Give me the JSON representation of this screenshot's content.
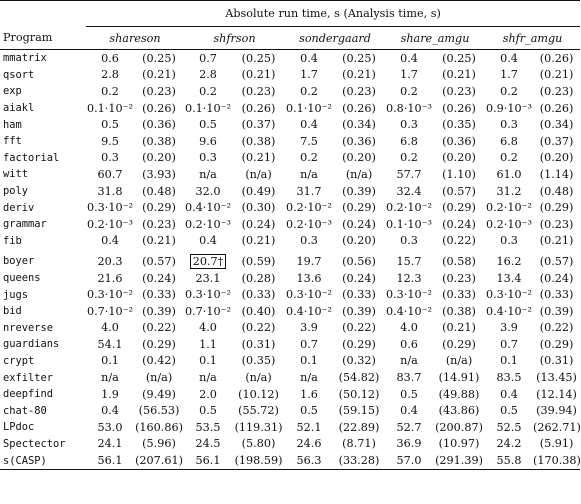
{
  "table": {
    "group_header": "Absolute run time, s (Analysis time, s)",
    "program_header": "Program",
    "tools": [
      "shareson",
      "shfrson",
      "sondergaard",
      "share_amgu",
      "shfr_amgu"
    ],
    "rows": [
      {
        "program": "mmatrix",
        "cells": [
          [
            "0.6",
            "(0.25)"
          ],
          [
            "0.7",
            "(0.25)"
          ],
          [
            "0.4",
            "(0.25)"
          ],
          [
            "0.4",
            "(0.25)"
          ],
          [
            "0.4",
            "(0.26)"
          ]
        ]
      },
      {
        "program": "qsort",
        "cells": [
          [
            "2.8",
            "(0.21)"
          ],
          [
            "2.8",
            "(0.21)"
          ],
          [
            "1.7",
            "(0.21)"
          ],
          [
            "1.7",
            "(0.21)"
          ],
          [
            "1.7",
            "(0.21)"
          ]
        ]
      },
      {
        "program": "exp",
        "cells": [
          [
            "0.2",
            "(0.23)"
          ],
          [
            "0.2",
            "(0.23)"
          ],
          [
            "0.2",
            "(0.23)"
          ],
          [
            "0.2",
            "(0.23)"
          ],
          [
            "0.2",
            "(0.23)"
          ]
        ]
      },
      {
        "program": "aiakl",
        "cells": [
          [
            "0.1·10⁻²",
            "(0.26)"
          ],
          [
            "0.1·10⁻²",
            "(0.26)"
          ],
          [
            "0.1·10⁻²",
            "(0.26)"
          ],
          [
            "0.8·10⁻³",
            "(0.26)"
          ],
          [
            "0.9·10⁻³",
            "(0.26)"
          ]
        ]
      },
      {
        "program": "ham",
        "cells": [
          [
            "0.5",
            "(0.36)"
          ],
          [
            "0.5",
            "(0.37)"
          ],
          [
            "0.4",
            "(0.34)"
          ],
          [
            "0.3",
            "(0.35)"
          ],
          [
            "0.3",
            "(0.34)"
          ]
        ]
      },
      {
        "program": "fft",
        "cells": [
          [
            "9.5",
            "(0.38)"
          ],
          [
            "9.6",
            "(0.38)"
          ],
          [
            "7.5",
            "(0.36)"
          ],
          [
            "6.8",
            "(0.36)"
          ],
          [
            "6.8",
            "(0.37)"
          ]
        ]
      },
      {
        "program": "factorial",
        "cells": [
          [
            "0.3",
            "(0.20)"
          ],
          [
            "0.3",
            "(0.21)"
          ],
          [
            "0.2",
            "(0.20)"
          ],
          [
            "0.2",
            "(0.20)"
          ],
          [
            "0.2",
            "(0.20)"
          ]
        ]
      },
      {
        "program": "witt",
        "cells": [
          [
            "60.7",
            "(3.93)"
          ],
          [
            "n/a",
            "(n/a)"
          ],
          [
            "n/a",
            "(n/a)"
          ],
          [
            "57.7",
            "(1.10)"
          ],
          [
            "61.0",
            "(1.14)"
          ]
        ]
      },
      {
        "program": "poly",
        "cells": [
          [
            "31.8",
            "(0.48)"
          ],
          [
            "32.0",
            "(0.49)"
          ],
          [
            "31.7",
            "(0.39)"
          ],
          [
            "32.4",
            "(0.57)"
          ],
          [
            "31.2",
            "(0.48)"
          ]
        ]
      },
      {
        "program": "deriv",
        "cells": [
          [
            "0.3·10⁻²",
            "(0.29)"
          ],
          [
            "0.4·10⁻²",
            "(0.30)"
          ],
          [
            "0.2·10⁻²",
            "(0.29)"
          ],
          [
            "0.2·10⁻²",
            "(0.29)"
          ],
          [
            "0.2·10⁻²",
            "(0.29)"
          ]
        ]
      },
      {
        "program": "grammar",
        "cells": [
          [
            "0.2·10⁻³",
            "(0.23)"
          ],
          [
            "0.2·10⁻³",
            "(0.24)"
          ],
          [
            "0.2·10⁻³",
            "(0.24)"
          ],
          [
            "0.1·10⁻³",
            "(0.24)"
          ],
          [
            "0.2·10⁻³",
            "(0.23)"
          ]
        ]
      },
      {
        "program": "fib",
        "cells": [
          [
            "0.4",
            "(0.21)"
          ],
          [
            "0.4",
            "(0.21)"
          ],
          [
            "0.3",
            "(0.20)"
          ],
          [
            "0.3",
            "(0.22)"
          ],
          [
            "0.3",
            "(0.21)"
          ]
        ]
      },
      {
        "program": "boyer",
        "gap": true,
        "cells": [
          [
            "20.3",
            "(0.57)"
          ],
          [
            "20.7†",
            "(0.59)"
          ],
          [
            "19.7",
            "(0.56)"
          ],
          [
            "15.7",
            "(0.58)"
          ],
          [
            "16.2",
            "(0.57)"
          ]
        ]
      },
      {
        "program": "queens",
        "cells": [
          [
            "21.6",
            "(0.24)"
          ],
          [
            "23.1",
            "(0.28)"
          ],
          [
            "13.6",
            "(0.24)"
          ],
          [
            "12.3",
            "(0.23)"
          ],
          [
            "13.4",
            "(0.24)"
          ]
        ]
      },
      {
        "program": "jugs",
        "cells": [
          [
            "0.3·10⁻²",
            "(0.33)"
          ],
          [
            "0.3·10⁻²",
            "(0.33)"
          ],
          [
            "0.3·10⁻²",
            "(0.33)"
          ],
          [
            "0.3·10⁻²",
            "(0.33)"
          ],
          [
            "0.3·10⁻²",
            "(0.33)"
          ]
        ]
      },
      {
        "program": "bid",
        "cells": [
          [
            "0.7·10⁻²",
            "(0.39)"
          ],
          [
            "0.7·10⁻²",
            "(0.40)"
          ],
          [
            "0.4·10⁻²",
            "(0.39)"
          ],
          [
            "0.4·10⁻²",
            "(0.38)"
          ],
          [
            "0.4·10⁻²",
            "(0.39)"
          ]
        ]
      },
      {
        "program": "nreverse",
        "cells": [
          [
            "4.0",
            "(0.22)"
          ],
          [
            "4.0",
            "(0.22)"
          ],
          [
            "3.9",
            "(0.22)"
          ],
          [
            "4.0",
            "(0.21)"
          ],
          [
            "3.9",
            "(0.22)"
          ]
        ]
      },
      {
        "program": "guardians",
        "cells": [
          [
            "54.1",
            "(0.29)"
          ],
          [
            "1.1",
            "(0.31)"
          ],
          [
            "0.7",
            "(0.29)"
          ],
          [
            "0.6",
            "(0.29)"
          ],
          [
            "0.7",
            "(0.29)"
          ]
        ]
      },
      {
        "program": "crypt",
        "cells": [
          [
            "0.1",
            "(0.42)"
          ],
          [
            "0.1",
            "(0.35)"
          ],
          [
            "0.1",
            "(0.32)"
          ],
          [
            "n/a",
            "(n/a)"
          ],
          [
            "0.1",
            "(0.31)"
          ]
        ]
      },
      {
        "program": "exfilter",
        "cells": [
          [
            "n/a",
            "(n/a)"
          ],
          [
            "n/a",
            "(n/a)"
          ],
          [
            "n/a",
            "(54.82)"
          ],
          [
            "83.7",
            "(14.91)"
          ],
          [
            "83.5",
            "(13.45)"
          ]
        ]
      },
      {
        "program": "deepfind",
        "cells": [
          [
            "1.9",
            "(9.49)"
          ],
          [
            "2.0",
            "(10.12)"
          ],
          [
            "1.6",
            "(50.12)"
          ],
          [
            "0.5",
            "(49.88)"
          ],
          [
            "0.4",
            "(12.14)"
          ]
        ]
      },
      {
        "program": "chat-80",
        "cells": [
          [
            "0.4",
            "(56.53)"
          ],
          [
            "0.5",
            "(55.72)"
          ],
          [
            "0.5",
            "(59.15)"
          ],
          [
            "0.4",
            "(43.86)"
          ],
          [
            "0.5",
            "(39.94)"
          ]
        ]
      },
      {
        "program": "LPdoc",
        "cells": [
          [
            "53.0",
            "(160.86)"
          ],
          [
            "53.5",
            "(119.31)"
          ],
          [
            "52.1",
            "(22.89)"
          ],
          [
            "52.7",
            "(200.87)"
          ],
          [
            "52.5",
            "(262.71)"
          ]
        ]
      },
      {
        "program": "Spectector",
        "cells": [
          [
            "24.1",
            "(5.96)"
          ],
          [
            "24.5",
            "(5.80)"
          ],
          [
            "24.6",
            "(8.71)"
          ],
          [
            "36.9",
            "(10.97)"
          ],
          [
            "24.2",
            "(5.91)"
          ]
        ]
      },
      {
        "program": "s(CASP)",
        "cells": [
          [
            "56.1",
            "(207.61)"
          ],
          [
            "56.1",
            "(198.59)"
          ],
          [
            "56.3",
            "(33.28)"
          ],
          [
            "57.0",
            "(291.39)"
          ],
          [
            "55.8",
            "(170.38)"
          ]
        ]
      }
    ]
  }
}
